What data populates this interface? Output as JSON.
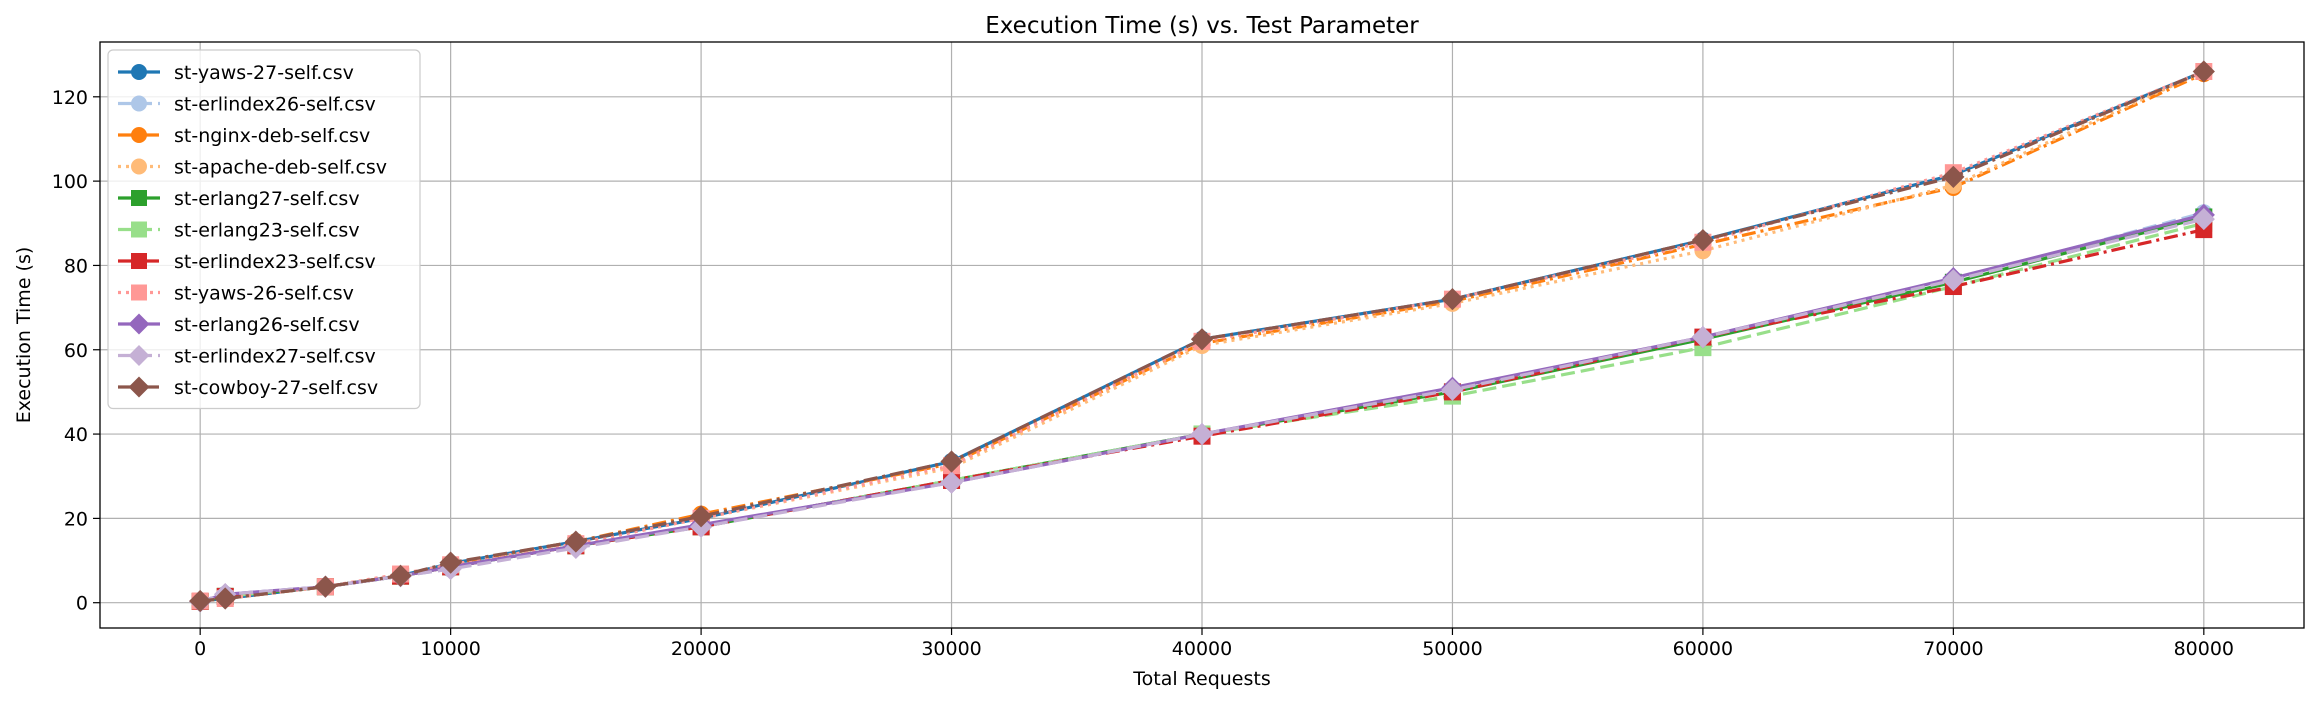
{
  "chart_data": {
    "type": "line",
    "title": "Execution Time (s) vs. Test Parameter",
    "xlabel": "Total Requests",
    "ylabel": "Execution Time (s)",
    "xlim": [
      -4000,
      84000
    ],
    "ylim": [
      -6,
      133
    ],
    "xticks": [
      0,
      10000,
      20000,
      30000,
      40000,
      50000,
      60000,
      70000,
      80000
    ],
    "yticks": [
      0,
      20,
      40,
      60,
      80,
      100,
      120
    ],
    "grid": true,
    "legend_position": "top-left",
    "x": [
      0,
      1000,
      5000,
      8000,
      10000,
      15000,
      20000,
      30000,
      40000,
      50000,
      60000,
      70000,
      80000
    ],
    "series": [
      {
        "name": "st-yaws-27-self.csv",
        "color": "#1f77b4",
        "dash": "solid",
        "marker": "circle",
        "values": [
          0.4,
          1.0,
          3.8,
          6.4,
          9.3,
          14.5,
          20.0,
          33.5,
          62.5,
          72.0,
          86.0,
          101.5,
          126.0
        ]
      },
      {
        "name": "st-erlindex26-self.csv",
        "color": "#aec7e8",
        "dash": "dash",
        "marker": "circle",
        "values": [
          0.3,
          2.0,
          3.8,
          6.3,
          8.0,
          13.5,
          18.0,
          29.0,
          40.0,
          50.5,
          62.5,
          76.5,
          92.5
        ]
      },
      {
        "name": "st-nginx-deb-self.csv",
        "color": "#ff7f0e",
        "dash": "dashdot",
        "marker": "circle",
        "values": [
          0.4,
          1.0,
          3.8,
          6.4,
          9.3,
          14.5,
          21.0,
          33.0,
          61.5,
          71.5,
          85.0,
          98.5,
          125.5
        ]
      },
      {
        "name": "st-apache-deb-self.csv",
        "color": "#ffbb78",
        "dash": "dot",
        "marker": "circle",
        "values": [
          0.4,
          1.0,
          3.8,
          6.6,
          9.0,
          14.0,
          20.0,
          32.0,
          61.0,
          71.0,
          83.5,
          99.0,
          126.0
        ]
      },
      {
        "name": "st-erlang27-self.csv",
        "color": "#2ca02c",
        "dash": "solid",
        "marker": "square",
        "values": [
          0.3,
          1.5,
          3.8,
          6.3,
          8.5,
          13.5,
          18.0,
          29.0,
          40.0,
          50.0,
          62.5,
          76.0,
          91.5
        ]
      },
      {
        "name": "st-erlang23-self.csv",
        "color": "#98df8a",
        "dash": "dash",
        "marker": "square",
        "values": [
          0.3,
          1.5,
          3.8,
          6.3,
          8.5,
          13.5,
          18.0,
          29.0,
          40.0,
          49.0,
          60.5,
          75.0,
          90.0
        ]
      },
      {
        "name": "st-erlindex23-self.csv",
        "color": "#d62728",
        "dash": "dashdot",
        "marker": "square",
        "values": [
          0.3,
          1.5,
          3.8,
          6.3,
          8.5,
          13.5,
          18.0,
          29.0,
          39.5,
          50.0,
          63.0,
          75.0,
          88.5
        ]
      },
      {
        "name": "st-yaws-26-self.csv",
        "color": "#ff9896",
        "dash": "dot",
        "marker": "square",
        "values": [
          0.4,
          1.0,
          3.8,
          6.8,
          9.0,
          14.0,
          20.0,
          32.5,
          62.0,
          72.0,
          85.5,
          102.0,
          126.0
        ]
      },
      {
        "name": "st-erlang26-self.csv",
        "color": "#9467bd",
        "dash": "solid",
        "marker": "diamond",
        "values": [
          0.3,
          2.0,
          3.8,
          6.3,
          8.5,
          13.5,
          18.5,
          28.5,
          40.0,
          51.0,
          63.0,
          77.0,
          92.0
        ]
      },
      {
        "name": "st-erlindex27-self.csv",
        "color": "#c5b0d5",
        "dash": "dash",
        "marker": "diamond",
        "values": [
          0.3,
          2.0,
          3.8,
          6.3,
          8.0,
          13.0,
          18.0,
          28.5,
          40.0,
          50.5,
          63.0,
          76.5,
          91.0
        ]
      },
      {
        "name": "st-cowboy-27-self.csv",
        "color": "#8c564b",
        "dash": "dashdot",
        "marker": "diamond",
        "values": [
          0.4,
          1.0,
          3.8,
          6.4,
          9.5,
          14.5,
          20.5,
          33.5,
          62.5,
          72.0,
          86.0,
          101.0,
          126.0
        ]
      }
    ]
  }
}
